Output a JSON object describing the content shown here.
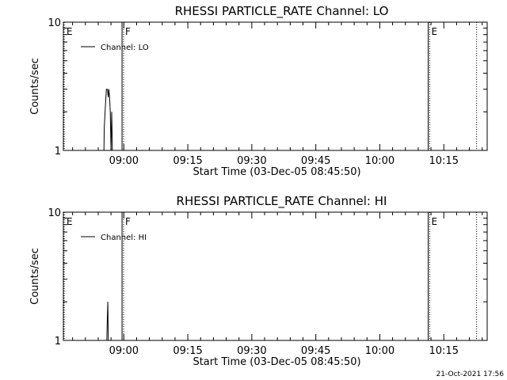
{
  "chart_data": [
    {
      "type": "line",
      "title": "RHESSI PARTICLE_RATE Channel: LO",
      "xlabel": "Start Time (03-Dec-05 08:45:50)",
      "ylabel": "Counts/sec",
      "yscale": "log",
      "ylim": [
        1,
        10
      ],
      "y_ticks": [
        "1",
        "10"
      ],
      "x_ticks": [
        "09:00",
        "09:15",
        "09:30",
        "09:45",
        "10:00",
        "10:15"
      ],
      "legend": [
        "Channel: LO"
      ],
      "legend_position": "top-left",
      "markers": [
        {
          "label": "E",
          "style": "dotted",
          "time": "08:45:50"
        },
        {
          "label": "F",
          "style": "solid-dotted",
          "time": "08:59:35"
        },
        {
          "label": "E",
          "style": "solid-dotted",
          "time": "10:11:20"
        },
        {
          "label": "",
          "style": "dotted",
          "time": "10:22:30"
        }
      ],
      "series": [
        {
          "name": "Channel: LO",
          "points": [
            [
              "08:55:20",
              1.0
            ],
            [
              "08:55:25",
              1.5
            ],
            [
              "08:55:40",
              2.2
            ],
            [
              "08:55:55",
              3.0
            ],
            [
              "08:56:10",
              3.0
            ],
            [
              "08:56:20",
              2.6
            ],
            [
              "08:56:30",
              3.0
            ],
            [
              "08:56:40",
              2.6
            ],
            [
              "08:56:50",
              2.0
            ],
            [
              "08:57:00",
              1.0
            ],
            [
              "08:57:10",
              2.0
            ],
            [
              "08:57:20",
              1.0
            ]
          ]
        }
      ]
    },
    {
      "type": "line",
      "title": "RHESSI PARTICLE_RATE Channel: HI",
      "xlabel": "Start Time (03-Dec-05 08:45:50)",
      "ylabel": "Counts/sec",
      "yscale": "log",
      "ylim": [
        1,
        10
      ],
      "y_ticks": [
        "1",
        "10"
      ],
      "x_ticks": [
        "09:00",
        "09:15",
        "09:30",
        "09:45",
        "10:00",
        "10:15"
      ],
      "legend": [
        "Channel: HI"
      ],
      "legend_position": "top-left",
      "markers": [
        {
          "label": "E",
          "style": "dotted",
          "time": "08:45:50"
        },
        {
          "label": "F",
          "style": "solid-dotted",
          "time": "08:59:35"
        },
        {
          "label": "E",
          "style": "solid-dotted",
          "time": "10:11:20"
        },
        {
          "label": "",
          "style": "dotted",
          "time": "10:22:30"
        }
      ],
      "series": [
        {
          "name": "Channel: HI",
          "points": [
            [
              "08:56:00",
              1.0
            ],
            [
              "08:56:08",
              1.5
            ],
            [
              "08:56:15",
              2.0
            ],
            [
              "08:56:22",
              1.0
            ]
          ]
        }
      ]
    }
  ],
  "timestamp": "21-Oct-2021 17:56"
}
